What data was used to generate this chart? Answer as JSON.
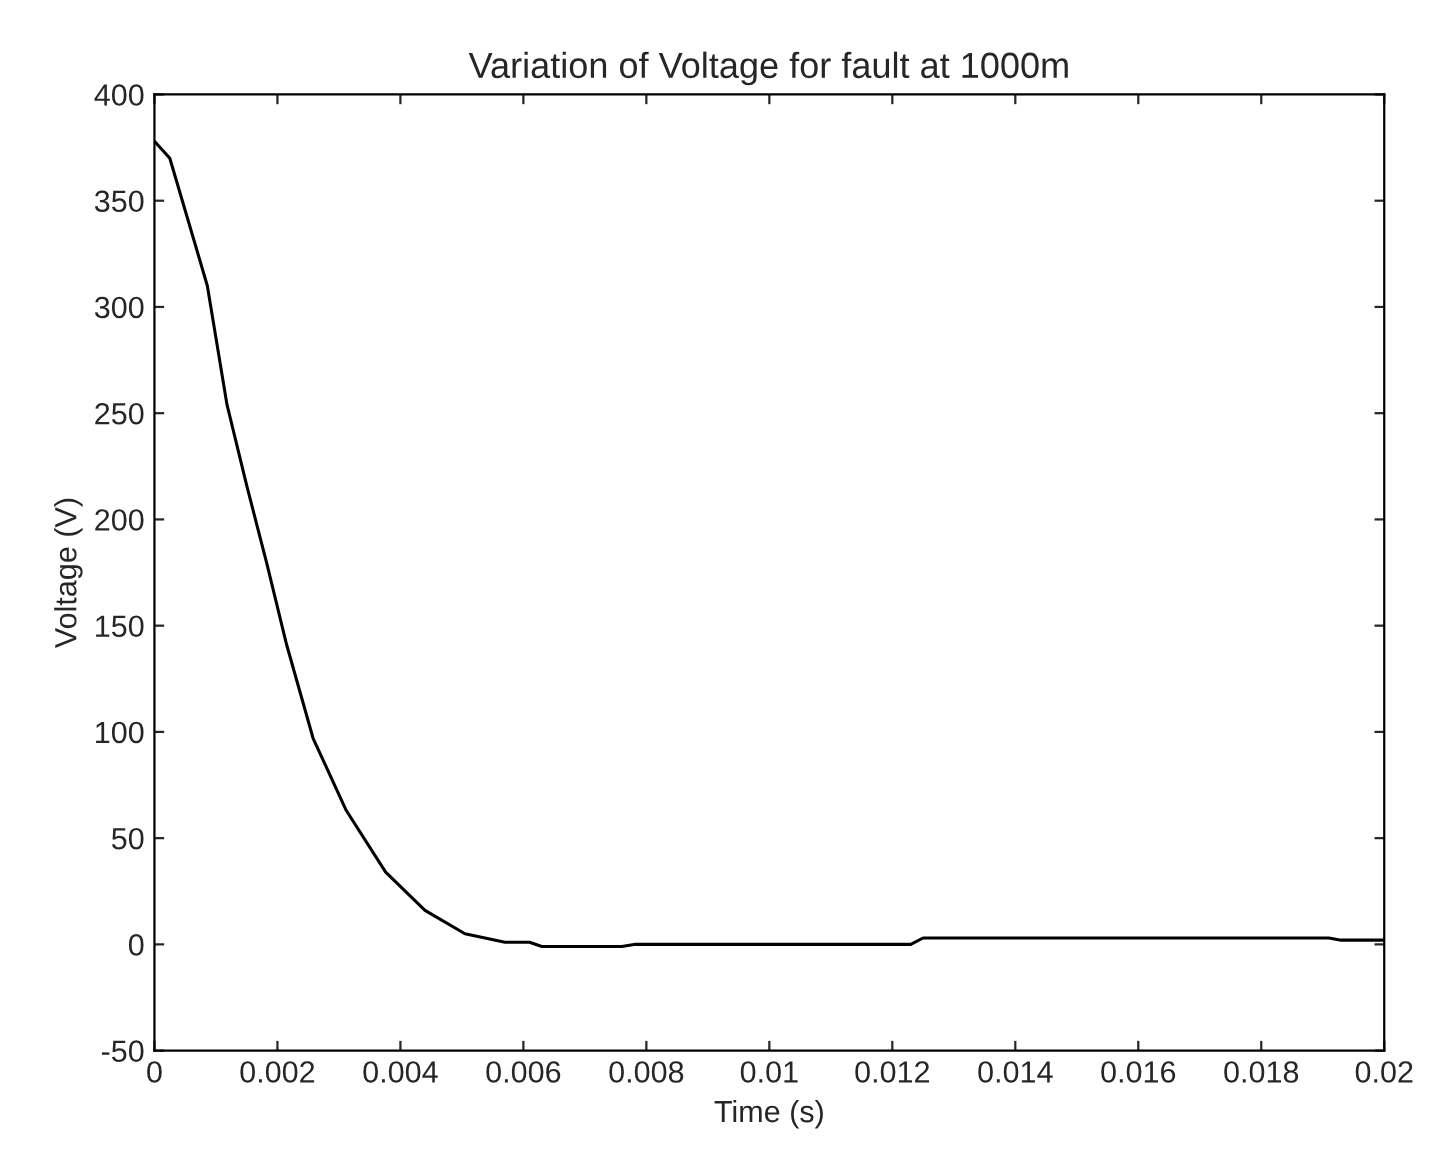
{
  "chart_data": {
    "type": "line",
    "title": "Variation of Voltage for fault at 1000m",
    "xlabel": "Time (s)",
    "ylabel": "Voltage (V)",
    "series": [
      {
        "color": "#000000",
        "x": [
          0,
          0.00025,
          0.000535,
          0.00086,
          0.00118,
          0.0015,
          0.00183,
          0.00215,
          0.00258,
          0.00312,
          0.00376,
          0.0044,
          0.00505,
          0.0057,
          0.0061,
          0.0063,
          0.0076,
          0.0078,
          0.0123,
          0.0125,
          0.0191,
          0.0193,
          0.02
        ],
        "values": [
          378,
          370,
          342,
          310,
          254,
          216,
          179,
          141,
          97,
          63,
          34,
          16,
          5,
          1,
          1,
          -1,
          -1,
          0,
          0,
          3,
          3,
          2,
          2
        ]
      }
    ],
    "xlim": [
      0,
      0.02
    ],
    "ylim": [
      -50,
      400
    ],
    "xticks": [
      0,
      0.002,
      0.004,
      0.006,
      0.008,
      0.01,
      0.012,
      0.014,
      0.016,
      0.018,
      0.02
    ],
    "yticks": [
      -50,
      0,
      50,
      100,
      150,
      200,
      250,
      300,
      350,
      400
    ],
    "grid": false,
    "legend": false
  }
}
